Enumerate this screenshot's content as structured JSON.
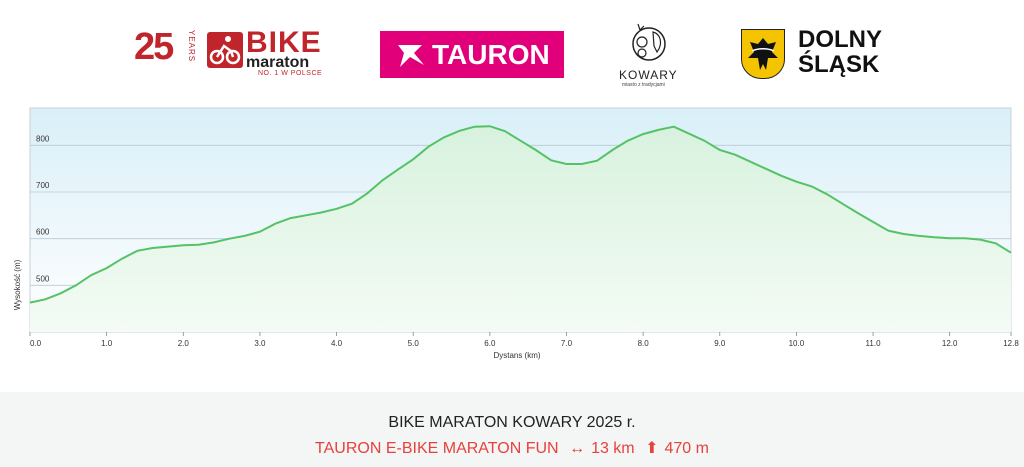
{
  "logos": {
    "bike_maraton": {
      "years_number": "25",
      "years_word": "YEARS",
      "bike": "BIKE",
      "maraton": "maraton",
      "tagline": "NO. 1 W POLSCE"
    },
    "tauron": {
      "name": "TAURON"
    },
    "kowary": {
      "name": "KOWARY",
      "tagline": "miasto z tradycjami"
    },
    "dolny_slask": {
      "line1": "DOLNY",
      "line2": "ŚLĄSK"
    }
  },
  "colors": {
    "brand_red": "#c0252b",
    "tauron_magenta": "#e2007a",
    "profile_line": "#55c266",
    "footer_red": "#e8403c"
  },
  "chart_data": {
    "type": "area",
    "title": "",
    "xlabel": "Dystans  (km)",
    "ylabel": "Wysokość (m)",
    "xlim": [
      0,
      12.8
    ],
    "ylim": [
      400,
      880
    ],
    "grid": true,
    "x_ticks": [
      "0.0",
      "1.0",
      "2.0",
      "3.0",
      "4.0",
      "5.0",
      "6.0",
      "7.0",
      "8.0",
      "9.0",
      "10.0",
      "11.0",
      "12.0",
      "12.8"
    ],
    "x_tick_values": [
      0,
      1,
      2,
      3,
      4,
      5,
      6,
      7,
      8,
      9,
      10,
      11,
      12,
      12.8
    ],
    "y_ticks": [
      "500",
      "600",
      "700",
      "800"
    ],
    "y_tick_values": [
      500,
      600,
      700,
      800
    ],
    "series": [
      {
        "x": [
          0,
          0.2,
          0.4,
          0.6,
          0.8,
          1.0,
          1.2,
          1.4,
          1.6,
          1.8,
          2.0,
          2.2,
          2.4,
          2.6,
          2.8,
          3.0,
          3.2,
          3.4,
          3.6,
          3.8,
          4.0,
          4.2,
          4.4,
          4.6,
          4.8,
          5.0,
          5.2,
          5.4,
          5.6,
          5.8,
          6.0,
          6.2,
          6.4,
          6.6,
          6.8,
          7.0,
          7.2,
          7.4,
          7.6,
          7.8,
          8.0,
          8.2,
          8.4,
          8.6,
          8.8,
          9.0,
          9.2,
          9.4,
          9.6,
          9.8,
          10.0,
          10.2,
          10.4,
          10.6,
          10.8,
          11.0,
          11.2,
          11.4,
          11.6,
          11.8,
          12.0,
          12.2,
          12.4,
          12.6,
          12.8
        ],
        "y": [
          463,
          470,
          483,
          500,
          522,
          537,
          557,
          574,
          580,
          583,
          586,
          587,
          592,
          600,
          606,
          615,
          632,
          644,
          650,
          656,
          664,
          675,
          697,
          725,
          748,
          770,
          797,
          817,
          831,
          840,
          841,
          830,
          810,
          790,
          768,
          760,
          760,
          767,
          790,
          810,
          824,
          833,
          840,
          825,
          810,
          790,
          780,
          765,
          750,
          735,
          722,
          712,
          695,
          675,
          655,
          636,
          617,
          610,
          606,
          603,
          601,
          601,
          598,
          590,
          570
        ]
      }
    ]
  },
  "footer": {
    "title": "BIKE MARATON KOWARY 2025 r.",
    "route_name": "TAURON E-BIKE MARATON FUN",
    "distance": "13 km",
    "elevation": "470 m"
  }
}
